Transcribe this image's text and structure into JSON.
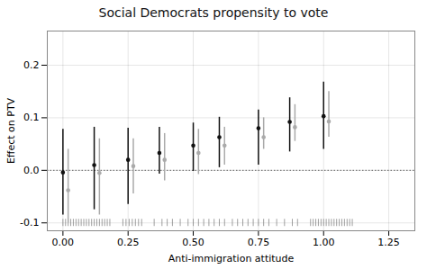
{
  "chart_data": {
    "type": "errorbar",
    "title": "Social Democrats propensity to vote",
    "x_label": "Anti-immigration attitude",
    "y_label": "Effect on PTV",
    "xlim": [
      -0.06,
      1.35
    ],
    "ylim": [
      -0.115,
      0.265
    ],
    "xticks": [
      {
        "value": 0.0,
        "label": "0.00"
      },
      {
        "value": 0.25,
        "label": "0.25"
      },
      {
        "value": 0.5,
        "label": "0.50"
      },
      {
        "value": 0.75,
        "label": "0.75"
      },
      {
        "value": 1.0,
        "label": "1.00"
      },
      {
        "value": 1.25,
        "label": "1.25"
      }
    ],
    "yticks": [
      {
        "value": -0.1,
        "label": "-0.1"
      },
      {
        "value": 0.0,
        "label": "0.0"
      },
      {
        "value": 0.1,
        "label": "0.1"
      },
      {
        "value": 0.2,
        "label": "0.2"
      }
    ],
    "grid": true,
    "hline_y": 0.0,
    "series": [
      {
        "color": "#aaaaaa",
        "x": [
          0.02,
          0.14,
          0.27,
          0.39,
          0.52,
          0.62,
          0.77,
          0.89,
          1.02
        ],
        "values": [
          -0.038,
          -0.005,
          0.008,
          0.02,
          0.033,
          0.047,
          0.063,
          0.082,
          0.093
        ],
        "ymin": [
          -0.1,
          -0.085,
          -0.045,
          -0.02,
          -0.008,
          0.01,
          0.04,
          0.055,
          0.063
        ],
        "ymax": [
          0.04,
          0.06,
          0.06,
          0.07,
          0.078,
          0.082,
          0.1,
          0.125,
          0.15
        ]
      },
      {
        "color": "#111111",
        "x": [
          0.0,
          0.12,
          0.25,
          0.37,
          0.5,
          0.6,
          0.75,
          0.87,
          1.0
        ],
        "values": [
          -0.004,
          0.01,
          0.02,
          0.033,
          0.047,
          0.063,
          0.08,
          0.092,
          0.103
        ],
        "ymin": [
          -0.085,
          -0.075,
          -0.065,
          -0.007,
          -0.002,
          0.005,
          0.01,
          0.035,
          0.04
        ],
        "ymax": [
          0.078,
          0.082,
          0.08,
          0.082,
          0.09,
          0.101,
          0.115,
          0.138,
          0.168
        ]
      }
    ],
    "rug": {
      "color": "#777777",
      "y": -0.1,
      "x": [
        0,
        0.01,
        0.02,
        0.03,
        0.04,
        0.05,
        0.06,
        0.07,
        0.08,
        0.09,
        0.1,
        0.11,
        0.12,
        0.13,
        0.14,
        0.15,
        0.16,
        0.17,
        0.18,
        0.23,
        0.242,
        0.254,
        0.266,
        0.278,
        0.29,
        0.302,
        0.35,
        0.38,
        0.4,
        0.42,
        0.45,
        0.48,
        0.5,
        0.52,
        0.54,
        0.56,
        0.58,
        0.6,
        0.62,
        0.65,
        0.67,
        0.69,
        0.71,
        0.73,
        0.75,
        0.77,
        0.79,
        0.82,
        0.85,
        0.88,
        0.9,
        0.95,
        0.96,
        0.97,
        0.98,
        0.99,
        1.0,
        1.01,
        1.02,
        1.03,
        1.04,
        1.05,
        1.06,
        1.07,
        1.08,
        1.09,
        1.1,
        1.11
      ]
    }
  }
}
